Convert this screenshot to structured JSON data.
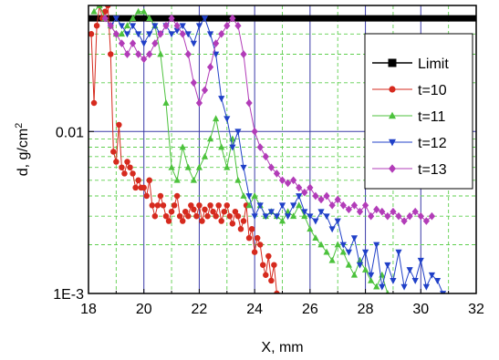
{
  "chart_data": {
    "type": "line",
    "xlabel": "X, mm",
    "ylabel_main": "d, g/cm",
    "ylabel_sup": "2",
    "xlim": [
      18,
      32
    ],
    "ylim": [
      0.001,
      0.06
    ],
    "yscale": "log",
    "x_ticks": [
      18,
      20,
      22,
      24,
      26,
      28,
      30,
      32
    ],
    "y_ticks": [
      {
        "value": 0.001,
        "label": "1E-3"
      },
      {
        "value": 0.01,
        "label": "0.01"
      }
    ],
    "grid": true,
    "legend_position": "right",
    "series": [
      {
        "name": "Limit",
        "color": "#000000",
        "marker": "square",
        "x": [
          18.0,
          32.0
        ],
        "y": [
          0.05,
          0.05
        ]
      },
      {
        "name": "t=10",
        "color": "#d62a1e",
        "marker": "circle",
        "x": [
          18.1,
          18.2,
          18.3,
          18.4,
          18.5,
          18.6,
          18.7,
          18.8,
          18.9,
          19.0,
          19.1,
          19.2,
          19.3,
          19.4,
          19.5,
          19.6,
          19.7,
          19.8,
          19.9,
          20.0,
          20.1,
          20.2,
          20.3,
          20.4,
          20.5,
          20.6,
          20.7,
          20.8,
          20.9,
          21.0,
          21.1,
          21.2,
          21.3,
          21.4,
          21.5,
          21.6,
          21.7,
          21.8,
          21.9,
          22.0,
          22.1,
          22.2,
          22.3,
          22.4,
          22.5,
          22.6,
          22.7,
          22.8,
          22.9,
          23.0,
          23.1,
          23.2,
          23.3,
          23.4,
          23.5,
          23.6,
          23.7,
          23.8,
          23.9,
          24.0,
          24.1,
          24.2,
          24.3,
          24.4,
          24.5,
          24.6,
          24.7,
          24.8
        ],
        "y": [
          0.04,
          0.015,
          0.045,
          0.06,
          0.05,
          0.055,
          0.06,
          0.03,
          0.0075,
          0.0065,
          0.011,
          0.006,
          0.0055,
          0.0065,
          0.006,
          0.0055,
          0.0045,
          0.005,
          0.0045,
          0.0045,
          0.004,
          0.005,
          0.0035,
          0.003,
          0.0035,
          0.004,
          0.0035,
          0.003,
          0.0028,
          0.0032,
          0.0035,
          0.004,
          0.003,
          0.0028,
          0.0032,
          0.003,
          0.0035,
          0.0033,
          0.003,
          0.0035,
          0.0028,
          0.0033,
          0.003,
          0.0035,
          0.0032,
          0.003,
          0.0035,
          0.0028,
          0.0032,
          0.0035,
          0.003,
          0.0027,
          0.0032,
          0.003,
          0.0025,
          0.0028,
          0.0035,
          0.0022,
          0.0025,
          0.0018,
          0.0022,
          0.002,
          0.0015,
          0.0013,
          0.0017,
          0.0012,
          0.0015,
          0.001
        ]
      },
      {
        "name": "t=11",
        "color": "#4cc23c",
        "marker": "triangle-up",
        "x": [
          18.2,
          18.4,
          18.6,
          18.8,
          19.0,
          19.2,
          19.4,
          19.6,
          19.8,
          20.0,
          20.2,
          20.4,
          20.6,
          20.8,
          21.0,
          21.2,
          21.4,
          21.6,
          21.8,
          22.0,
          22.2,
          22.4,
          22.6,
          22.8,
          23.0,
          23.2,
          23.4,
          23.6,
          23.8,
          24.0,
          24.2,
          24.4,
          24.6,
          24.8,
          25.0,
          25.2,
          25.4,
          25.6,
          25.8,
          26.0,
          26.2,
          26.4,
          26.6,
          26.8,
          27.0,
          27.2,
          27.4,
          27.6,
          27.8,
          28.0,
          28.2,
          28.4,
          28.6,
          28.8
        ],
        "y": [
          0.055,
          0.06,
          0.05,
          0.045,
          0.04,
          0.04,
          0.045,
          0.05,
          0.055,
          0.055,
          0.05,
          0.045,
          0.03,
          0.015,
          0.006,
          0.005,
          0.008,
          0.006,
          0.005,
          0.006,
          0.007,
          0.009,
          0.012,
          0.008,
          0.006,
          0.009,
          0.005,
          0.004,
          0.0035,
          0.004,
          0.0035,
          0.003,
          0.0032,
          0.003,
          0.0028,
          0.0032,
          0.003,
          0.0035,
          0.003,
          0.0025,
          0.0022,
          0.002,
          0.0018,
          0.0016,
          0.002,
          0.0018,
          0.0015,
          0.0013,
          0.0016,
          0.0014,
          0.0012,
          0.0011,
          0.0013,
          0.001
        ]
      },
      {
        "name": "t=12",
        "color": "#2040c8",
        "marker": "triangle-down",
        "x": [
          18.8,
          19.0,
          19.2,
          19.4,
          19.6,
          19.8,
          20.0,
          20.2,
          20.4,
          20.6,
          20.8,
          21.0,
          21.2,
          21.4,
          21.6,
          21.8,
          22.0,
          22.2,
          22.4,
          22.6,
          22.8,
          23.0,
          23.2,
          23.4,
          23.6,
          23.8,
          24.0,
          24.2,
          24.4,
          24.6,
          24.8,
          25.0,
          25.2,
          25.4,
          25.6,
          25.8,
          26.0,
          26.2,
          26.4,
          26.6,
          26.8,
          27.0,
          27.2,
          27.4,
          27.6,
          27.8,
          28.0,
          28.2,
          28.4,
          28.6,
          28.8,
          29.0,
          29.2,
          29.4,
          29.6,
          29.8,
          30.0,
          30.2,
          30.4,
          30.6,
          30.8
        ],
        "y": [
          0.045,
          0.05,
          0.045,
          0.04,
          0.045,
          0.04,
          0.035,
          0.04,
          0.045,
          0.04,
          0.045,
          0.04,
          0.042,
          0.045,
          0.04,
          0.035,
          0.045,
          0.05,
          0.04,
          0.03,
          0.016,
          0.012,
          0.008,
          0.01,
          0.006,
          0.004,
          0.003,
          0.0035,
          0.003,
          0.0032,
          0.003,
          0.0035,
          0.003,
          0.0035,
          0.004,
          0.0032,
          0.003,
          0.0028,
          0.0032,
          0.003,
          0.0025,
          0.0028,
          0.002,
          0.0018,
          0.0022,
          0.0015,
          0.0018,
          0.0013,
          0.002,
          0.0011,
          0.0015,
          0.0012,
          0.0018,
          0.0011,
          0.0014,
          0.0012,
          0.0016,
          0.0011,
          0.0013,
          0.0012,
          0.001
        ]
      },
      {
        "name": "t=13",
        "color": "#b23cb8",
        "marker": "diamond",
        "x": [
          18.6,
          18.8,
          19.0,
          19.2,
          19.4,
          19.6,
          19.8,
          20.0,
          20.2,
          20.4,
          20.6,
          20.8,
          21.0,
          21.2,
          21.4,
          21.6,
          21.8,
          22.0,
          22.2,
          22.4,
          22.6,
          22.8,
          23.0,
          23.2,
          23.4,
          23.6,
          23.8,
          24.0,
          24.2,
          24.4,
          24.6,
          24.8,
          25.0,
          25.2,
          25.4,
          25.6,
          25.8,
          26.0,
          26.2,
          26.4,
          26.6,
          26.8,
          27.0,
          27.2,
          27.4,
          27.6,
          27.8,
          28.0,
          28.2,
          28.4,
          28.6,
          28.8,
          29.0,
          29.2,
          29.4,
          29.6,
          29.8,
          30.0,
          30.2,
          30.4
        ],
        "y": [
          0.05,
          0.045,
          0.04,
          0.035,
          0.03,
          0.035,
          0.03,
          0.028,
          0.03,
          0.035,
          0.04,
          0.045,
          0.05,
          0.045,
          0.04,
          0.03,
          0.02,
          0.015,
          0.018,
          0.025,
          0.035,
          0.04,
          0.045,
          0.05,
          0.045,
          0.03,
          0.015,
          0.01,
          0.008,
          0.007,
          0.006,
          0.0055,
          0.005,
          0.0048,
          0.005,
          0.0045,
          0.0042,
          0.0045,
          0.004,
          0.0038,
          0.004,
          0.0035,
          0.0038,
          0.0035,
          0.0033,
          0.0035,
          0.0032,
          0.0035,
          0.003,
          0.0033,
          0.0032,
          0.003,
          0.0032,
          0.003,
          0.0028,
          0.003,
          0.0032,
          0.003,
          0.0028,
          0.003
        ]
      }
    ]
  }
}
